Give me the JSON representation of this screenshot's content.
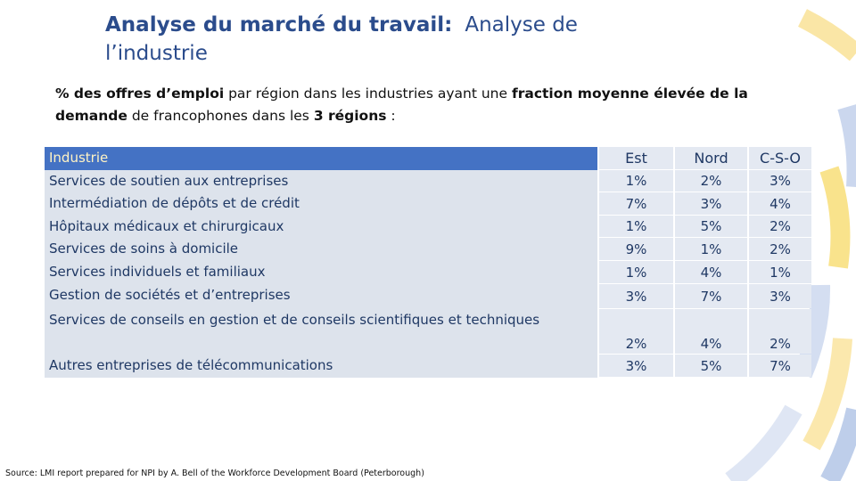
{
  "header": {
    "title_bold": "Analyse du marché du travail:",
    "title_regular": "Analyse de l’industrie"
  },
  "subtitle": [
    {
      "text": "% des offres d’emploi",
      "bold": true
    },
    {
      "text": "par région dans les industries ayant une",
      "bold": false
    },
    {
      "text": "fraction moyenne élevée de la demande",
      "bold": true
    },
    {
      "text": "de francophones dans les",
      "bold": false
    },
    {
      "text": "3 régions",
      "bold": true
    },
    {
      "text": ":",
      "bold": false
    }
  ],
  "table": {
    "columns": [
      "Industrie",
      "Est",
      "Nord",
      "C-S-O"
    ],
    "rows": [
      [
        "Services de soutien aux entreprises",
        "1%",
        "2%",
        "3%"
      ],
      [
        "Intermédiation de dépôts et de crédit",
        "7%",
        "3%",
        "4%"
      ],
      [
        "Hôpitaux médicaux et chirurgicaux",
        "1%",
        "5%",
        "2%"
      ],
      [
        "Services de soins à domicile",
        "9%",
        "1%",
        "2%"
      ],
      [
        "Services individuels et familiaux",
        "1%",
        "4%",
        "1%"
      ],
      [
        "Gestion de sociétés et d’entreprises",
        "3%",
        "7%",
        "3%"
      ],
      [
        "Services de conseils en gestion et de conseils scientifiques et techniques",
        "2%",
        "4%",
        "2%"
      ],
      [
        "Autres entreprises de télécommunications",
        "3%",
        "5%",
        "7%"
      ]
    ]
  },
  "source": "Source: LMI report prepared for NPI by A. Bell of the Workforce Development Board (Peterborough)"
}
